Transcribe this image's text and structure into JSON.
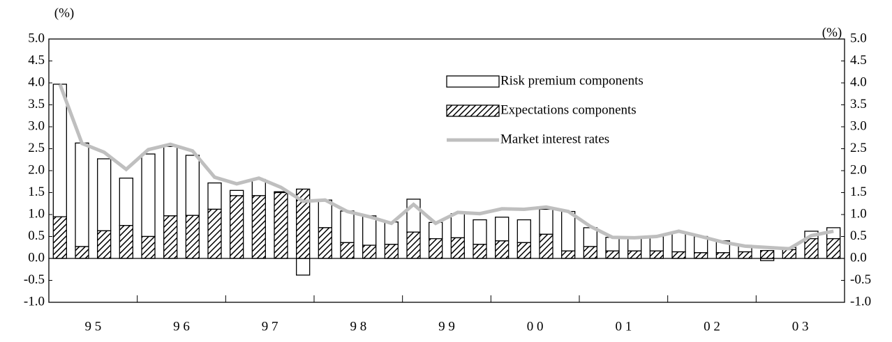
{
  "chart_data": {
    "type": "bar",
    "y_axis_label": "(%)",
    "y2_axis_label": "(%)",
    "x_groups": [
      "9 5",
      "9 6",
      "9 7",
      "9 8",
      "9 9",
      "0 0",
      "0 1",
      "0 2",
      "0 3"
    ],
    "categories": [
      null,
      null,
      null,
      null,
      null,
      null,
      null,
      null,
      null,
      null,
      null,
      null,
      null,
      null,
      null,
      null,
      null,
      null,
      null,
      null,
      null,
      null,
      null,
      null,
      null,
      null,
      null,
      null,
      null,
      null,
      null,
      null,
      null,
      null,
      null,
      null
    ],
    "series": [
      {
        "name": "Risk premium components",
        "type": "bar",
        "color": "#ffffff",
        "stack_on": 1,
        "values": [
          3.02,
          2.36,
          1.64,
          1.08,
          1.88,
          1.58,
          1.37,
          0.6,
          0.12,
          0.37,
          0.02,
          -0.38,
          0.63,
          0.72,
          0.67,
          0.51,
          0.75,
          0.37,
          0.55,
          0.56,
          0.54,
          0.52,
          0.57,
          0.9,
          0.43,
          0.31,
          0.31,
          0.33,
          0.45,
          0.37,
          0.27,
          0.15,
          -0.05,
          0.05,
          0.17,
          0.25
        ]
      },
      {
        "name": "Expectations components",
        "type": "bar",
        "color": "#000000",
        "pattern": "hatch",
        "values": [
          0.95,
          0.27,
          0.63,
          0.75,
          0.5,
          0.97,
          0.98,
          1.12,
          1.43,
          1.43,
          1.5,
          1.58,
          0.7,
          0.36,
          0.3,
          0.32,
          0.6,
          0.45,
          0.47,
          0.32,
          0.4,
          0.36,
          0.55,
          0.17,
          0.27,
          0.17,
          0.17,
          0.17,
          0.15,
          0.13,
          0.13,
          0.15,
          0.18,
          0.2,
          0.45,
          0.45
        ]
      },
      {
        "name": "Market interest rates",
        "type": "line",
        "color": "#bfbfbf",
        "values": [
          3.97,
          2.62,
          2.42,
          2.03,
          2.48,
          2.6,
          2.45,
          1.85,
          1.7,
          1.83,
          1.62,
          1.3,
          1.33,
          1.07,
          0.95,
          0.8,
          1.23,
          0.8,
          1.05,
          1.02,
          1.13,
          1.12,
          1.17,
          1.07,
          0.73,
          0.48,
          0.47,
          0.5,
          0.62,
          0.5,
          0.37,
          0.28,
          0.25,
          0.22,
          0.52,
          0.62
        ]
      }
    ],
    "ylim": [
      -1,
      5
    ],
    "yticks": [
      {
        "value": 5,
        "label": "5.0"
      },
      4.5,
      {
        "value": 4,
        "label": "4.0"
      },
      3.5,
      {
        "value": 3,
        "label": "3.0"
      },
      2.5,
      {
        "value": 2,
        "label": "2.0"
      },
      1.5,
      {
        "value": 1,
        "label": "1.0"
      },
      0.5,
      {
        "value": 0,
        "label": "0.0"
      },
      -0.5,
      {
        "value": -1,
        "label": "-1.0"
      }
    ],
    "y2lim": [
      -1,
      5
    ],
    "y2ticks": [
      {
        "value": 5,
        "label": "5.0"
      },
      4.5,
      {
        "value": 4,
        "label": "4.0"
      },
      3.5,
      {
        "value": 3,
        "label": "3.0"
      },
      2.5,
      {
        "value": 2,
        "label": "2.0"
      },
      1.5,
      {
        "value": 1,
        "label": "1.0"
      },
      0.5,
      {
        "value": 0,
        "label": "0.0"
      },
      -0.5,
      {
        "value": -1,
        "label": "-1.0"
      }
    ],
    "grid": false,
    "legend": "upper-right"
  }
}
